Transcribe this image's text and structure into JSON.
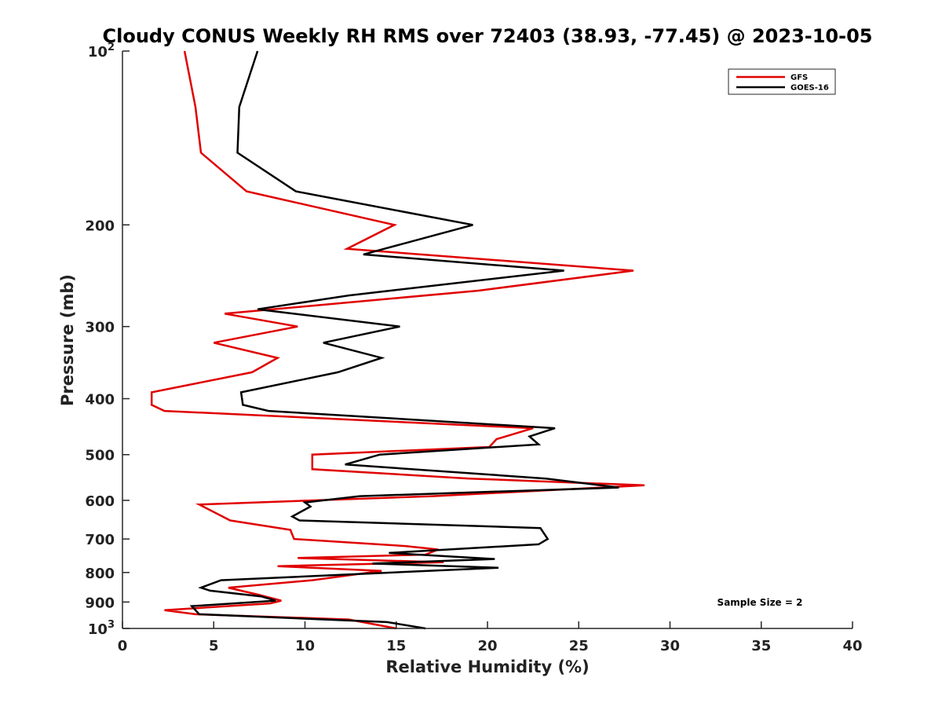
{
  "chart_data": {
    "type": "line",
    "title": "Cloudy CONUS Weekly RH RMS over 72403 (38.93, -77.45) @ 2023-10-05",
    "xlabel": "Relative Humidity (%)",
    "ylabel": "Pressure (mb)",
    "xlim": [
      0,
      40
    ],
    "ylim": [
      100,
      1000
    ],
    "y_scale": "log",
    "y_reversed": true,
    "x_ticks": [
      0,
      5,
      10,
      15,
      20,
      25,
      30,
      35,
      40
    ],
    "x_tick_labels": [
      "0",
      "5",
      "10",
      "15",
      "20",
      "25",
      "30",
      "35",
      "40"
    ],
    "y_ticks": [
      100,
      200,
      300,
      400,
      500,
      600,
      700,
      800,
      900,
      1000
    ],
    "y_tick_labels": [
      {
        "base": "10",
        "exp": "2"
      },
      {
        "base": "200",
        "exp": ""
      },
      {
        "base": "300",
        "exp": ""
      },
      {
        "base": "400",
        "exp": ""
      },
      {
        "base": "500",
        "exp": ""
      },
      {
        "base": "600",
        "exp": ""
      },
      {
        "base": "700",
        "exp": ""
      },
      {
        "base": "800",
        "exp": ""
      },
      {
        "base": "900",
        "exp": ""
      },
      {
        "base": "10",
        "exp": "3"
      }
    ],
    "grid": false,
    "legend_position": "top-right",
    "series": [
      {
        "name": "GFS",
        "color": "#e00000",
        "points": [
          [
            3.4,
            100
          ],
          [
            4.0,
            125
          ],
          [
            4.3,
            150
          ],
          [
            6.8,
            175
          ],
          [
            14.9,
            200
          ],
          [
            12.3,
            220
          ],
          [
            28.0,
            240
          ],
          [
            19.5,
            260
          ],
          [
            5.6,
            285
          ],
          [
            9.6,
            300
          ],
          [
            5.0,
            320
          ],
          [
            8.5,
            340
          ],
          [
            7.1,
            360
          ],
          [
            1.6,
            390
          ],
          [
            1.6,
            410
          ],
          [
            2.3,
            420
          ],
          [
            22.5,
            450
          ],
          [
            20.5,
            470
          ],
          [
            20.1,
            485
          ],
          [
            10.4,
            500
          ],
          [
            10.4,
            530
          ],
          [
            19.0,
            550
          ],
          [
            28.6,
            565
          ],
          [
            17.0,
            590
          ],
          [
            4.2,
            610
          ],
          [
            5.9,
            650
          ],
          [
            9.2,
            675
          ],
          [
            9.4,
            700
          ],
          [
            15.5,
            720
          ],
          [
            17.3,
            730
          ],
          [
            16.6,
            745
          ],
          [
            9.6,
            755
          ],
          [
            17.6,
            768
          ],
          [
            8.5,
            780
          ],
          [
            14.2,
            795
          ],
          [
            10.4,
            825
          ],
          [
            5.8,
            850
          ],
          [
            7.5,
            875
          ],
          [
            8.7,
            895
          ],
          [
            8.1,
            905
          ],
          [
            2.3,
            930
          ],
          [
            4.0,
            945
          ],
          [
            12.4,
            965
          ],
          [
            15.0,
            1000
          ]
        ]
      },
      {
        "name": "GOES-16",
        "color": "#000000",
        "points": [
          [
            7.4,
            100
          ],
          [
            6.4,
            125
          ],
          [
            6.3,
            150
          ],
          [
            9.5,
            175
          ],
          [
            19.2,
            200
          ],
          [
            13.2,
            225
          ],
          [
            24.2,
            240
          ],
          [
            12.4,
            265
          ],
          [
            7.4,
            280
          ],
          [
            15.2,
            300
          ],
          [
            11.0,
            320
          ],
          [
            14.2,
            340
          ],
          [
            11.8,
            360
          ],
          [
            6.5,
            390
          ],
          [
            6.6,
            410
          ],
          [
            8.0,
            420
          ],
          [
            23.7,
            450
          ],
          [
            22.3,
            465
          ],
          [
            22.8,
            480
          ],
          [
            14.1,
            500
          ],
          [
            12.2,
            520
          ],
          [
            23.2,
            550
          ],
          [
            27.2,
            570
          ],
          [
            13.0,
            590
          ],
          [
            10.0,
            605
          ],
          [
            10.3,
            615
          ],
          [
            9.3,
            640
          ],
          [
            9.7,
            650
          ],
          [
            22.9,
            670
          ],
          [
            23.3,
            700
          ],
          [
            22.8,
            715
          ],
          [
            14.6,
            740
          ],
          [
            20.4,
            758
          ],
          [
            13.7,
            772
          ],
          [
            20.6,
            785
          ],
          [
            5.4,
            825
          ],
          [
            4.3,
            850
          ],
          [
            4.8,
            860
          ],
          [
            7.6,
            880
          ],
          [
            8.4,
            895
          ],
          [
            3.8,
            915
          ],
          [
            4.2,
            945
          ],
          [
            14.5,
            975
          ],
          [
            16.6,
            1000
          ]
        ]
      }
    ],
    "annotations": [
      {
        "text": "Sample Size = 2",
        "x": 35,
        "y": 900
      }
    ]
  }
}
